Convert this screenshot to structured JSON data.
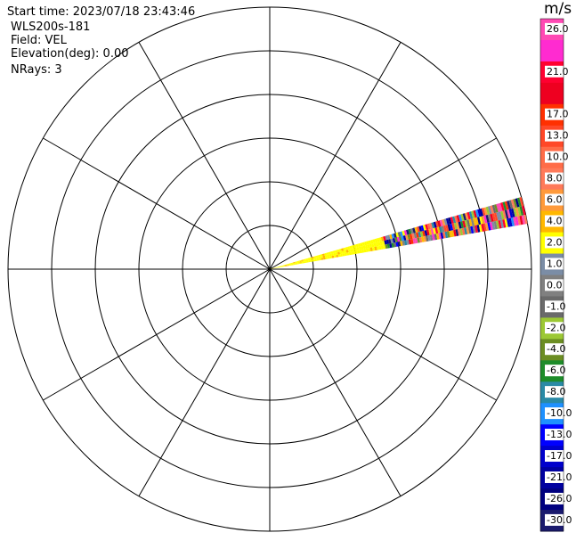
{
  "chart_data": {
    "type": "heatmap",
    "subtype": "ppi-polar-sector",
    "info_lines": {
      "start_time": "Start time: 2023/07/18 23:43:46",
      "instrument": "WLS200s-181",
      "field": "Field: VEL",
      "elevation": "Elevation(deg): 0.00",
      "nrays": "NRays: 3"
    },
    "colorbar": {
      "unit": "m/s",
      "bands": [
        {
          "label": "26.0",
          "color": "#ff49b4"
        },
        {
          "label": "",
          "color": "#ff2bd0"
        },
        {
          "label": "21.0",
          "color": "#ff0030"
        },
        {
          "label": "",
          "color": "#ee0020"
        },
        {
          "label": "17.0",
          "color": "#ff3000"
        },
        {
          "label": "13.0",
          "color": "#ff4828"
        },
        {
          "label": "10.0",
          "color": "#ff6c48"
        },
        {
          "label": "8.0",
          "color": "#ff7a5a"
        },
        {
          "label": "6.0",
          "color": "#ff9a3a"
        },
        {
          "label": "4.0",
          "color": "#ffb800"
        },
        {
          "label": "2.0",
          "color": "#ffff00"
        },
        {
          "label": "1.0",
          "color": "#7b8da6"
        },
        {
          "label": "0.0",
          "color": "#808080"
        },
        {
          "label": "-1.0",
          "color": "#6a6a6a"
        },
        {
          "label": "-2.0",
          "color": "#9cc834"
        },
        {
          "label": "-4.0",
          "color": "#6c8e23"
        },
        {
          "label": "-6.0",
          "color": "#1e8c2a"
        },
        {
          "label": "-8.0",
          "color": "#2a8aa6"
        },
        {
          "label": "-10.0",
          "color": "#1e90ff"
        },
        {
          "label": "-13.0",
          "color": "#0000ff"
        },
        {
          "label": "-17.0",
          "color": "#0000cc"
        },
        {
          "label": "-21.0",
          "color": "#0000a0"
        },
        {
          "label": "-26.0",
          "color": "#000080"
        },
        {
          "label": "-30.0",
          "color": "#1a1a6e"
        }
      ]
    },
    "polar_grid": {
      "range_rings": 6,
      "spokes_deg": [
        0,
        30,
        60,
        90,
        120,
        150,
        180,
        210,
        240,
        270,
        300,
        330
      ]
    },
    "sector": {
      "azimuth_start_deg": 74,
      "azimuth_end_deg": 80,
      "range_max_fraction": 1.0
    }
  }
}
